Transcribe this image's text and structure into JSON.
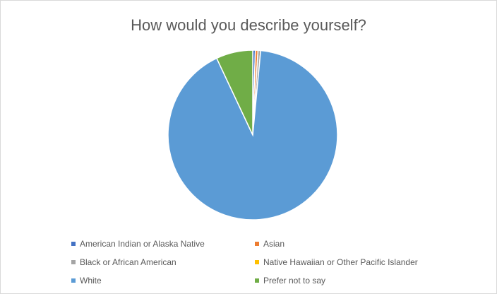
{
  "chart_data": {
    "type": "pie",
    "title": "How would you describe yourself?",
    "legend_position": "bottom",
    "categories": [
      "American Indian or Alaska Native",
      "Asian",
      "Black or African American",
      "Native Hawaiian or Other Pacific Islander",
      "White",
      "Prefer not to say"
    ],
    "values": [
      0.5,
      0.5,
      0.5,
      0.0,
      91.5,
      7.0
    ],
    "colors": [
      "#4472c4",
      "#ed7d31",
      "#a5a5a5",
      "#ffc000",
      "#5b9bd5",
      "#70ad47"
    ]
  }
}
